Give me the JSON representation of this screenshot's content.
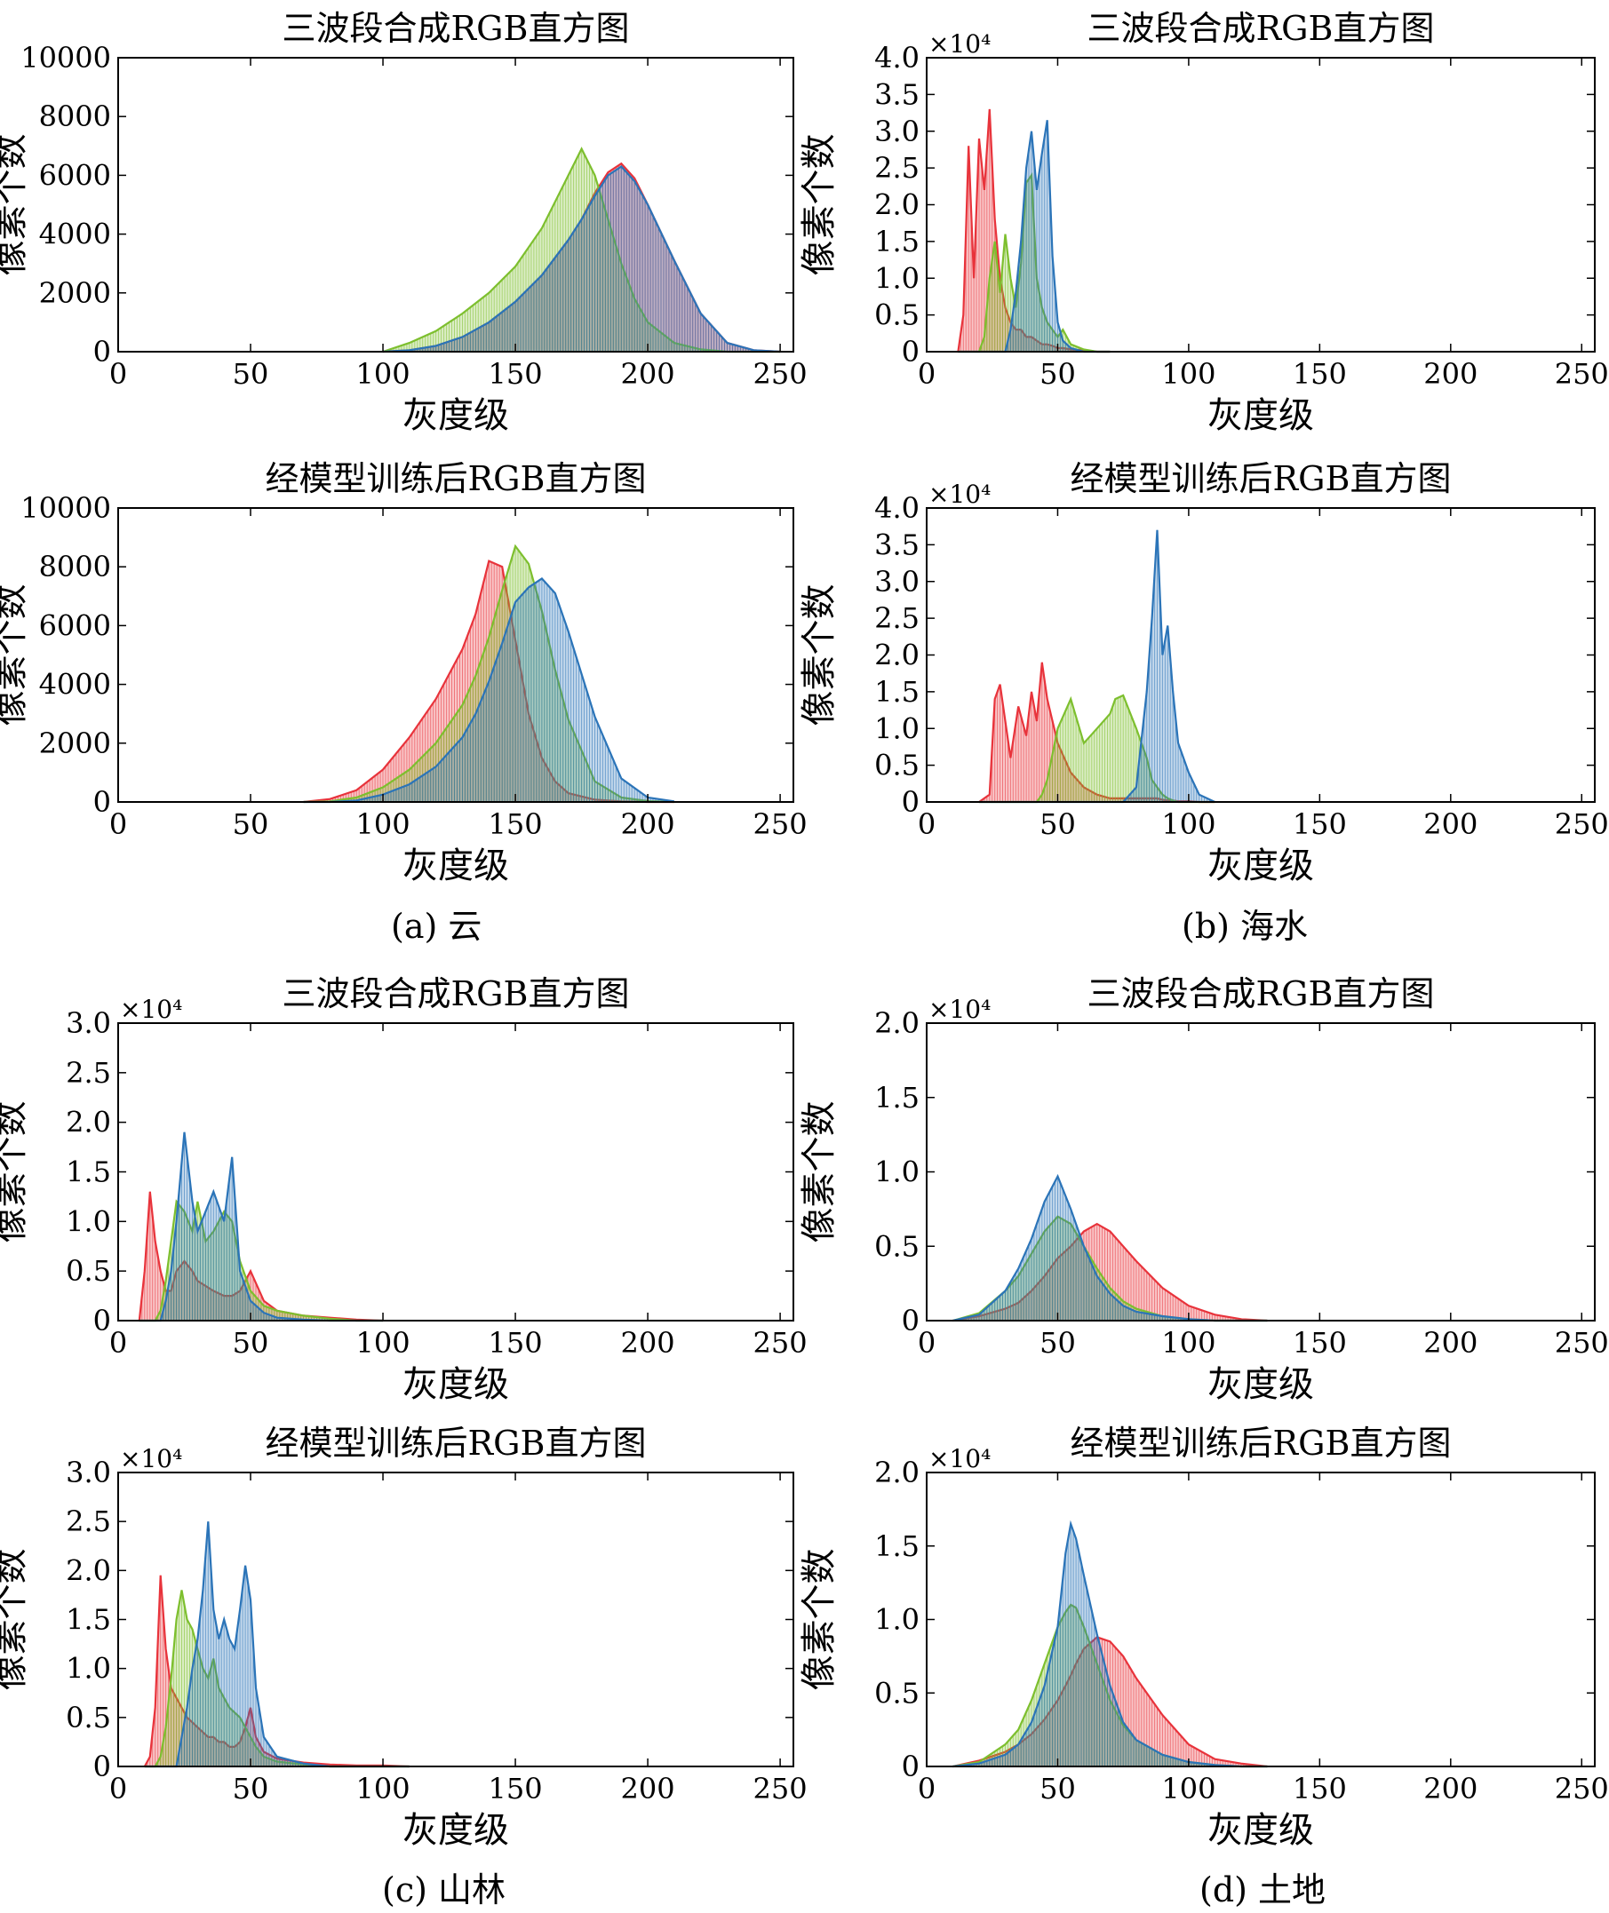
{
  "colors": {
    "red": "#e8333b",
    "green": "#7dbf2e",
    "blue": "#2b74b8",
    "axis": "#000000"
  },
  "captions": [
    "(a) 云",
    "(b) 海水",
    "(c) 山林",
    "(d) 土地"
  ],
  "chart_data": [
    {
      "type": "area",
      "panel": "a",
      "title": "三波段合成RGB直方图",
      "xlabel": "灰度级",
      "ylabel": "像素个数",
      "xlim": [
        0,
        255
      ],
      "ylim": [
        0,
        10000
      ],
      "xticks": [
        0,
        50,
        100,
        150,
        200,
        250
      ],
      "yticks": [
        0,
        2000,
        4000,
        6000,
        8000,
        10000
      ],
      "ytick_labels": [
        "0",
        "2000",
        "4000",
        "6000",
        "8000",
        "10000"
      ],
      "exponent": "",
      "grid": false,
      "legend": "none",
      "x": [
        100,
        110,
        120,
        130,
        140,
        150,
        160,
        170,
        175,
        180,
        185,
        190,
        195,
        200,
        210,
        220,
        230,
        240,
        250
      ],
      "series": [
        {
          "color": "red",
          "values": [
            0,
            50,
            200,
            500,
            1000,
            1700,
            2600,
            3800,
            4500,
            5400,
            6100,
            6400,
            5900,
            5000,
            3100,
            1300,
            300,
            50,
            0
          ]
        },
        {
          "color": "green",
          "values": [
            0,
            300,
            700,
            1300,
            2000,
            2900,
            4200,
            6000,
            6900,
            6000,
            4500,
            3000,
            1800,
            1000,
            300,
            80,
            0,
            0,
            0
          ]
        },
        {
          "color": "blue",
          "values": [
            0,
            50,
            200,
            500,
            1000,
            1700,
            2600,
            3800,
            4500,
            5300,
            6000,
            6300,
            5800,
            5000,
            3100,
            1300,
            300,
            50,
            0
          ]
        }
      ]
    },
    {
      "type": "area",
      "panel": "b",
      "title": "三波段合成RGB直方图",
      "xlabel": "灰度级",
      "ylabel": "像素个数",
      "xlim": [
        0,
        255
      ],
      "ylim": [
        0,
        4.0
      ],
      "xticks": [
        0,
        50,
        100,
        150,
        200,
        250
      ],
      "yticks": [
        0,
        0.5,
        1.0,
        1.5,
        2.0,
        2.5,
        3.0,
        3.5,
        4.0
      ],
      "ytick_labels": [
        "0",
        "0.5",
        "1.0",
        "1.5",
        "2.0",
        "2.5",
        "3.0",
        "3.5",
        "4.0"
      ],
      "exponent": "×10⁴",
      "grid": false,
      "legend": "none",
      "x": [
        12,
        14,
        16,
        18,
        20,
        22,
        24,
        26,
        28,
        30,
        32,
        34,
        36,
        38,
        40,
        42,
        44,
        46,
        48,
        50,
        52,
        55,
        60,
        65,
        70
      ],
      "series": [
        {
          "color": "red",
          "values": [
            0,
            0.5,
            2.8,
            1.0,
            2.9,
            2.2,
            3.3,
            1.8,
            1.0,
            0.6,
            0.4,
            0.3,
            0.3,
            0.2,
            0.2,
            0.15,
            0.1,
            0.1,
            0.08,
            0.05,
            0.05,
            0.03,
            0.02,
            0,
            0
          ]
        },
        {
          "color": "green",
          "values": [
            0,
            0,
            0,
            0,
            0,
            0.2,
            1.0,
            1.5,
            0.8,
            1.6,
            1.0,
            0.6,
            1.2,
            2.3,
            2.4,
            1.0,
            0.6,
            0.4,
            0.3,
            0.2,
            0.3,
            0.1,
            0.03,
            0,
            0
          ]
        },
        {
          "color": "blue",
          "values": [
            0,
            0,
            0,
            0,
            0,
            0,
            0,
            0,
            0,
            0,
            0.3,
            0.8,
            1.5,
            2.5,
            3.0,
            2.2,
            2.7,
            3.15,
            1.3,
            0.4,
            0.15,
            0.05,
            0,
            0,
            0
          ]
        }
      ]
    },
    {
      "type": "area",
      "panel": "a",
      "title": "经模型训练后RGB直方图",
      "xlabel": "灰度级",
      "ylabel": "像素个数",
      "xlim": [
        0,
        255
      ],
      "ylim": [
        0,
        10000
      ],
      "xticks": [
        0,
        50,
        100,
        150,
        200,
        250
      ],
      "yticks": [
        0,
        2000,
        4000,
        6000,
        8000,
        10000
      ],
      "ytick_labels": [
        "0",
        "2000",
        "4000",
        "6000",
        "8000",
        "10000"
      ],
      "exponent": "",
      "grid": false,
      "legend": "none",
      "x": [
        70,
        80,
        90,
        100,
        110,
        120,
        130,
        135,
        140,
        145,
        150,
        155,
        160,
        165,
        170,
        180,
        190,
        200,
        210
      ],
      "series": [
        {
          "color": "red",
          "values": [
            0,
            100,
            400,
            1100,
            2200,
            3500,
            5200,
            6400,
            8200,
            8000,
            5500,
            3000,
            1500,
            700,
            300,
            80,
            20,
            0,
            0
          ]
        },
        {
          "color": "green",
          "values": [
            0,
            20,
            150,
            500,
            1100,
            2000,
            3300,
            4300,
            5600,
            7200,
            8700,
            8100,
            6500,
            4500,
            2800,
            700,
            150,
            30,
            0
          ]
        },
        {
          "color": "blue",
          "values": [
            0,
            0,
            50,
            250,
            600,
            1200,
            2200,
            3000,
            4100,
            5400,
            6800,
            7300,
            7600,
            7100,
            5800,
            2900,
            800,
            150,
            20
          ]
        }
      ]
    },
    {
      "type": "area",
      "panel": "b",
      "title": "经模型训练后RGB直方图",
      "xlabel": "灰度级",
      "ylabel": "像素个数",
      "xlim": [
        0,
        255
      ],
      "ylim": [
        0,
        4.0
      ],
      "xticks": [
        0,
        50,
        100,
        150,
        200,
        250
      ],
      "yticks": [
        0,
        0.5,
        1.0,
        1.5,
        2.0,
        2.5,
        3.0,
        3.5,
        4.0
      ],
      "ytick_labels": [
        "0",
        "0.5",
        "1.0",
        "1.5",
        "2.0",
        "2.5",
        "3.0",
        "3.5",
        "4.0"
      ],
      "exponent": "×10⁴",
      "grid": false,
      "legend": "none",
      "x": [
        20,
        24,
        26,
        28,
        32,
        35,
        38,
        40,
        42,
        44,
        46,
        50,
        55,
        60,
        65,
        70,
        72,
        75,
        80,
        84,
        86,
        88,
        90,
        92,
        94,
        96,
        100,
        104,
        110
      ],
      "series": [
        {
          "color": "red",
          "values": [
            0,
            0.1,
            1.4,
            1.6,
            0.6,
            1.3,
            0.9,
            1.5,
            1.1,
            1.9,
            1.4,
            0.8,
            0.4,
            0.2,
            0.1,
            0.05,
            0.05,
            0.05,
            0.05,
            0.05,
            0.05,
            0.05,
            0.03,
            0.02,
            0.02,
            0.01,
            0.01,
            0,
            0
          ]
        },
        {
          "color": "green",
          "values": [
            0,
            0,
            0,
            0,
            0,
            0,
            0,
            0,
            0,
            0.1,
            0.3,
            1.0,
            1.4,
            0.8,
            1.0,
            1.2,
            1.4,
            1.45,
            1.0,
            0.6,
            0.3,
            0.2,
            0.1,
            0.05,
            0.02,
            0,
            0,
            0,
            0
          ]
        },
        {
          "color": "blue",
          "values": [
            0,
            0,
            0,
            0,
            0,
            0,
            0,
            0,
            0,
            0,
            0,
            0,
            0,
            0,
            0,
            0,
            0,
            0,
            0.2,
            1.5,
            2.5,
            3.7,
            2.0,
            2.4,
            1.5,
            0.8,
            0.4,
            0.1,
            0
          ]
        }
      ]
    },
    {
      "type": "area",
      "panel": "c",
      "title": "三波段合成RGB直方图",
      "xlabel": "灰度级",
      "ylabel": "像素个数",
      "xlim": [
        0,
        255
      ],
      "ylim": [
        0,
        3.0
      ],
      "xticks": [
        0,
        50,
        100,
        150,
        200,
        250
      ],
      "yticks": [
        0,
        0.5,
        1.0,
        1.5,
        2.0,
        2.5,
        3.0
      ],
      "ytick_labels": [
        "0",
        "0.5",
        "1.0",
        "1.5",
        "2.0",
        "2.5",
        "3.0"
      ],
      "exponent": "×10⁴",
      "grid": false,
      "legend": "none",
      "x": [
        8,
        10,
        12,
        14,
        16,
        18,
        20,
        22,
        25,
        28,
        30,
        33,
        36,
        40,
        43,
        46,
        50,
        55,
        60,
        70,
        80,
        90,
        100
      ],
      "series": [
        {
          "color": "red",
          "values": [
            0,
            0.5,
            1.3,
            0.8,
            0.5,
            0.3,
            0.3,
            0.5,
            0.6,
            0.5,
            0.4,
            0.35,
            0.3,
            0.25,
            0.25,
            0.3,
            0.5,
            0.2,
            0.1,
            0.05,
            0.03,
            0.01,
            0
          ]
        },
        {
          "color": "green",
          "values": [
            0,
            0,
            0,
            0,
            0.1,
            0.4,
            0.8,
            1.2,
            1.1,
            0.9,
            1.2,
            0.8,
            0.9,
            1.1,
            1.0,
            0.6,
            0.3,
            0.15,
            0.1,
            0.05,
            0.02,
            0,
            0
          ]
        },
        {
          "color": "blue",
          "values": [
            0,
            0,
            0,
            0,
            0,
            0.2,
            0.5,
            1.0,
            1.9,
            1.2,
            0.9,
            1.1,
            1.3,
            1.0,
            1.65,
            0.5,
            0.2,
            0.08,
            0.03,
            0.01,
            0,
            0,
            0
          ]
        }
      ]
    },
    {
      "type": "area",
      "panel": "d",
      "title": "三波段合成RGB直方图",
      "xlabel": "灰度级",
      "ylabel": "像素个数",
      "xlim": [
        0,
        255
      ],
      "ylim": [
        0,
        2.0
      ],
      "xticks": [
        0,
        50,
        100,
        150,
        200,
        250
      ],
      "yticks": [
        0,
        0.5,
        1.0,
        1.5,
        2.0
      ],
      "ytick_labels": [
        "0",
        "0.5",
        "1.0",
        "1.5",
        "2.0"
      ],
      "exponent": "×10⁴",
      "grid": false,
      "legend": "none",
      "x": [
        10,
        20,
        30,
        35,
        40,
        45,
        50,
        55,
        60,
        65,
        70,
        75,
        80,
        90,
        100,
        110,
        120,
        130
      ],
      "series": [
        {
          "color": "red",
          "values": [
            0,
            0.03,
            0.08,
            0.12,
            0.2,
            0.3,
            0.42,
            0.5,
            0.6,
            0.65,
            0.6,
            0.5,
            0.4,
            0.22,
            0.1,
            0.04,
            0.01,
            0
          ]
        },
        {
          "color": "green",
          "values": [
            0,
            0.05,
            0.2,
            0.3,
            0.45,
            0.6,
            0.7,
            0.65,
            0.5,
            0.35,
            0.22,
            0.13,
            0.08,
            0.03,
            0.01,
            0,
            0,
            0
          ]
        },
        {
          "color": "blue",
          "values": [
            0,
            0.04,
            0.2,
            0.35,
            0.55,
            0.8,
            0.97,
            0.75,
            0.5,
            0.3,
            0.18,
            0.1,
            0.06,
            0.03,
            0.01,
            0,
            0,
            0
          ]
        }
      ]
    },
    {
      "type": "area",
      "panel": "c",
      "title": "经模型训练后RGB直方图",
      "xlabel": "灰度级",
      "ylabel": "像素个数",
      "xlim": [
        0,
        255
      ],
      "ylim": [
        0,
        3.0
      ],
      "xticks": [
        0,
        50,
        100,
        150,
        200,
        250
      ],
      "yticks": [
        0,
        0.5,
        1.0,
        1.5,
        2.0,
        2.5,
        3.0
      ],
      "ytick_labels": [
        "0",
        "0.5",
        "1.0",
        "1.5",
        "2.0",
        "2.5",
        "3.0"
      ],
      "exponent": "×10⁴",
      "grid": false,
      "legend": "none",
      "x": [
        10,
        12,
        14,
        16,
        18,
        20,
        22,
        24,
        26,
        28,
        30,
        32,
        34,
        36,
        38,
        40,
        42,
        44,
        46,
        48,
        50,
        52,
        55,
        60,
        70,
        80,
        90,
        100,
        110
      ],
      "series": [
        {
          "color": "red",
          "values": [
            0,
            0.1,
            0.6,
            1.95,
            1.2,
            0.8,
            0.7,
            0.6,
            0.5,
            0.45,
            0.4,
            0.35,
            0.3,
            0.3,
            0.25,
            0.25,
            0.2,
            0.2,
            0.25,
            0.4,
            0.6,
            0.3,
            0.15,
            0.08,
            0.04,
            0.02,
            0.01,
            0.01,
            0
          ]
        },
        {
          "color": "green",
          "values": [
            0,
            0,
            0,
            0.1,
            0.4,
            0.9,
            1.5,
            1.8,
            1.5,
            1.4,
            1.2,
            1.0,
            0.9,
            1.1,
            0.8,
            0.7,
            0.6,
            0.55,
            0.5,
            0.4,
            0.3,
            0.2,
            0.1,
            0.05,
            0.02,
            0,
            0,
            0,
            0
          ]
        },
        {
          "color": "blue",
          "values": [
            0,
            0,
            0,
            0,
            0,
            0,
            0,
            0.3,
            0.6,
            1.0,
            1.3,
            1.8,
            2.5,
            1.6,
            1.3,
            1.5,
            1.3,
            1.2,
            1.6,
            2.05,
            1.7,
            0.8,
            0.3,
            0.1,
            0.03,
            0,
            0,
            0,
            0
          ]
        }
      ]
    },
    {
      "type": "area",
      "panel": "d",
      "title": "经模型训练后RGB直方图",
      "xlabel": "灰度级",
      "ylabel": "像素个数",
      "xlim": [
        0,
        255
      ],
      "ylim": [
        0,
        2.0
      ],
      "xticks": [
        0,
        50,
        100,
        150,
        200,
        250
      ],
      "yticks": [
        0,
        0.5,
        1.0,
        1.5,
        2.0
      ],
      "ytick_labels": [
        "0",
        "0.5",
        "1.0",
        "1.5",
        "2.0"
      ],
      "exponent": "×10⁴",
      "grid": false,
      "legend": "none",
      "x": [
        10,
        20,
        30,
        35,
        40,
        45,
        50,
        53,
        55,
        57,
        60,
        65,
        70,
        75,
        80,
        90,
        100,
        110,
        120,
        130
      ],
      "series": [
        {
          "color": "red",
          "values": [
            0,
            0.04,
            0.1,
            0.15,
            0.22,
            0.32,
            0.45,
            0.55,
            0.62,
            0.7,
            0.8,
            0.88,
            0.85,
            0.75,
            0.6,
            0.35,
            0.15,
            0.05,
            0.02,
            0
          ]
        },
        {
          "color": "green",
          "values": [
            0,
            0.03,
            0.15,
            0.25,
            0.45,
            0.7,
            0.95,
            1.05,
            1.1,
            1.08,
            0.95,
            0.7,
            0.45,
            0.28,
            0.18,
            0.08,
            0.03,
            0.01,
            0,
            0
          ]
        },
        {
          "color": "blue",
          "values": [
            0,
            0.02,
            0.08,
            0.15,
            0.3,
            0.55,
            0.95,
            1.45,
            1.65,
            1.55,
            1.3,
            0.9,
            0.55,
            0.3,
            0.18,
            0.08,
            0.03,
            0.01,
            0,
            0
          ]
        }
      ]
    }
  ]
}
